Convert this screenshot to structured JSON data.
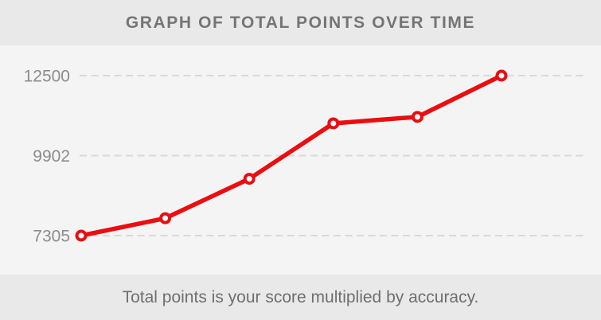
{
  "header": {
    "title": "GRAPH OF TOTAL POINTS OVER TIME"
  },
  "footer": {
    "caption": "Total points is your score multiplied by accuracy."
  },
  "colors": {
    "band_bg": "#e9e9e9",
    "chart_bg": "#f4f4f5",
    "title_text": "#757575",
    "caption_text": "#6f6f6f",
    "grid_line": "#d9d9d9",
    "axis_label": "#8c8c8c",
    "series_line": "#ea0e10",
    "marker_fill": "#ffffff"
  },
  "chart_data": {
    "type": "line",
    "title": "GRAPH OF TOTAL POINTS OVER TIME",
    "subtitle": "Total points is your score multiplied by accuracy.",
    "x": [
      1,
      2,
      3,
      4,
      5,
      6
    ],
    "series": [
      {
        "name": "Total points",
        "values": [
          7305,
          7870,
          9150,
          10950,
          11160,
          12500
        ]
      }
    ],
    "xlabel": "",
    "ylabel": "",
    "yticks": [
      12500,
      9902,
      7305
    ],
    "ylim": [
      6300,
      13450
    ],
    "grid": "dashed horizontal",
    "legend": "none",
    "marker": "hollow circle"
  }
}
